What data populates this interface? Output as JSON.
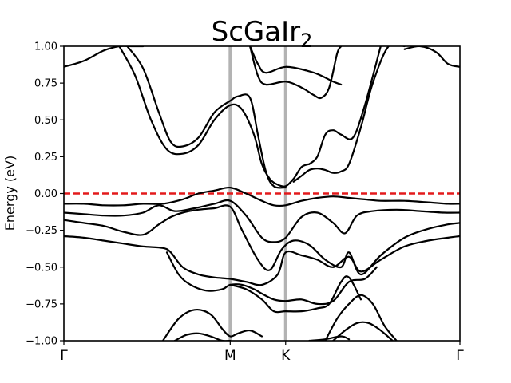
{
  "chart_data": {
    "type": "line",
    "title": "ScGaIr",
    "title_subscript": "2",
    "xlabel": "",
    "ylabel": "Energy (eV)",
    "ylim": [
      -1.0,
      1.0
    ],
    "xlim": [
      0,
      1
    ],
    "grid": false,
    "legend": "none",
    "yticks": [
      -1.0,
      -0.75,
      -0.5,
      -0.25,
      0.0,
      0.25,
      0.5,
      0.75,
      1.0
    ],
    "ytick_labels": [
      "−1.00",
      "−0.75",
      "−0.50",
      "−0.25",
      "0.00",
      "0.25",
      "0.50",
      "0.75",
      "1.00"
    ],
    "kpoints": [
      {
        "label": "Γ",
        "x": 0.0
      },
      {
        "label": "M",
        "x": 0.42
      },
      {
        "label": "K",
        "x": 0.56
      },
      {
        "label": "Γ",
        "x": 1.0
      }
    ],
    "fermi_level": 0.0,
    "colors": {
      "bands": "#000000",
      "fermi": "#e31a1c",
      "kline": "#b3b3b3"
    },
    "series": [
      {
        "x": [
          0.0,
          0.05,
          0.1,
          0.14,
          0.17,
          0.2
        ],
        "y": [
          0.86,
          0.9,
          0.97,
          1.0,
          1.0,
          1.0
        ]
      },
      {
        "x": [
          0.14,
          0.18,
          0.22,
          0.26,
          0.3,
          0.34,
          0.38,
          0.42,
          0.45,
          0.48,
          0.5,
          0.52,
          0.54,
          0.56,
          0.58,
          0.6,
          0.62
        ],
        "y": [
          1.0,
          0.8,
          0.5,
          0.3,
          0.27,
          0.33,
          0.5,
          0.6,
          0.57,
          0.4,
          0.2,
          0.1,
          0.06,
          0.05,
          0.1,
          0.18,
          0.2
        ]
      },
      {
        "x": [
          0.16,
          0.2,
          0.24,
          0.27,
          0.3,
          0.34,
          0.38,
          0.42,
          0.44,
          0.47,
          0.49,
          0.51,
          0.53,
          0.56
        ],
        "y": [
          1.0,
          0.85,
          0.55,
          0.35,
          0.32,
          0.38,
          0.55,
          0.63,
          0.66,
          0.65,
          0.4,
          0.15,
          0.05,
          0.04
        ]
      },
      {
        "x": [
          0.62,
          0.64,
          0.66,
          0.68,
          0.7,
          0.73,
          0.76,
          0.8
        ],
        "y": [
          0.2,
          0.25,
          0.4,
          0.43,
          0.4,
          0.38,
          0.6,
          1.0
        ]
      },
      {
        "x": [
          0.58,
          0.6,
          0.62,
          0.64,
          0.66,
          0.68,
          0.7,
          0.72,
          0.75,
          0.78,
          0.82,
          0.86
        ],
        "y": [
          0.08,
          0.12,
          0.16,
          0.17,
          0.16,
          0.14,
          0.15,
          0.2,
          0.45,
          0.75,
          1.0,
          1.0
        ]
      },
      {
        "x": [
          0.47,
          0.49,
          0.51,
          0.56,
          0.62,
          0.65,
          0.68,
          0.7
        ],
        "y": [
          1.0,
          0.88,
          0.82,
          0.86,
          0.83,
          0.8,
          0.76,
          0.74
        ]
      },
      {
        "x": [
          0.47,
          0.49,
          0.51,
          0.56,
          0.6,
          0.63,
          0.65,
          0.67,
          0.69,
          0.7
        ],
        "y": [
          1.0,
          0.8,
          0.74,
          0.76,
          0.72,
          0.67,
          0.65,
          0.72,
          0.95,
          1.0
        ]
      },
      {
        "x": [
          0.86,
          0.9,
          0.94,
          0.97,
          1.0
        ],
        "y": [
          0.98,
          1.0,
          0.96,
          0.88,
          0.86
        ]
      },
      {
        "x": [
          0.0,
          0.05,
          0.1,
          0.15,
          0.2,
          0.25,
          0.3,
          0.34,
          0.38,
          0.42,
          0.46,
          0.5,
          0.53,
          0.56,
          0.6,
          0.64,
          0.68,
          0.72,
          0.76,
          0.8,
          0.86,
          0.92,
          0.97,
          1.0
        ],
        "y": [
          -0.07,
          -0.07,
          -0.08,
          -0.08,
          -0.07,
          -0.07,
          -0.04,
          0.0,
          0.02,
          0.04,
          0.0,
          -0.05,
          -0.08,
          -0.08,
          -0.05,
          -0.03,
          -0.02,
          -0.03,
          -0.04,
          -0.05,
          -0.05,
          -0.06,
          -0.07,
          -0.07
        ]
      },
      {
        "x": [
          0.0,
          0.05,
          0.1,
          0.15,
          0.2,
          0.24,
          0.28,
          0.33,
          0.38,
          0.42,
          0.46,
          0.5,
          0.53,
          0.56,
          0.6,
          0.64,
          0.68,
          0.71,
          0.74,
          0.78,
          0.84,
          0.9,
          0.96,
          1.0
        ],
        "y": [
          -0.13,
          -0.14,
          -0.15,
          -0.15,
          -0.13,
          -0.08,
          -0.12,
          -0.1,
          -0.07,
          -0.05,
          -0.15,
          -0.3,
          -0.33,
          -0.3,
          -0.16,
          -0.13,
          -0.2,
          -0.27,
          -0.15,
          -0.12,
          -0.11,
          -0.12,
          -0.13,
          -0.13
        ]
      },
      {
        "x": [
          0.0,
          0.05,
          0.1,
          0.15,
          0.2,
          0.24,
          0.27,
          0.3,
          0.34,
          0.38,
          0.42,
          0.45,
          0.49,
          0.52,
          0.55,
          0.58,
          0.62,
          0.66,
          0.7,
          0.72,
          0.75,
          0.8,
          0.86,
          0.92,
          0.97,
          1.0
        ],
        "y": [
          -0.18,
          -0.2,
          -0.22,
          -0.26,
          -0.28,
          -0.21,
          -0.16,
          -0.13,
          -0.11,
          -0.1,
          -0.09,
          -0.25,
          -0.45,
          -0.52,
          -0.38,
          -0.32,
          -0.35,
          -0.45,
          -0.5,
          -0.4,
          -0.55,
          -0.42,
          -0.3,
          -0.24,
          -0.21,
          -0.2
        ]
      },
      {
        "x": [
          0.0,
          0.05,
          0.1,
          0.15,
          0.2,
          0.25,
          0.27,
          0.3,
          0.34,
          0.38,
          0.42,
          0.46,
          0.5,
          0.54,
          0.56,
          0.6,
          0.64,
          0.68,
          0.72,
          0.75,
          0.8,
          0.86,
          0.92,
          0.97,
          1.0
        ],
        "y": [
          -0.29,
          -0.3,
          -0.32,
          -0.34,
          -0.36,
          -0.37,
          -0.4,
          -0.5,
          -0.55,
          -0.57,
          -0.58,
          -0.6,
          -0.62,
          -0.55,
          -0.4,
          -0.42,
          -0.45,
          -0.5,
          -0.43,
          -0.53,
          -0.45,
          -0.36,
          -0.32,
          -0.3,
          -0.29
        ]
      },
      {
        "x": [
          0.26,
          0.29,
          0.32,
          0.36,
          0.4,
          0.42,
          0.45,
          0.48,
          0.5,
          0.53,
          0.56,
          0.6,
          0.64,
          0.68,
          0.72,
          0.76,
          0.79
        ],
        "y": [
          -0.4,
          -0.55,
          -0.62,
          -0.66,
          -0.65,
          -0.62,
          -0.62,
          -0.65,
          -0.68,
          -0.72,
          -0.73,
          -0.72,
          -0.75,
          -0.73,
          -0.6,
          -0.58,
          -0.5
        ]
      },
      {
        "x": [
          0.42,
          0.46,
          0.5,
          0.53,
          0.56,
          0.6,
          0.64,
          0.67,
          0.7,
          0.72,
          0.75
        ],
        "y": [
          -0.62,
          -0.65,
          -0.72,
          -0.8,
          -0.8,
          -0.8,
          -0.78,
          -0.75,
          -0.6,
          -0.57,
          -0.72
        ]
      },
      {
        "x": [
          0.25,
          0.29,
          0.33,
          0.37,
          0.4,
          0.42,
          0.44,
          0.47,
          0.5
        ],
        "y": [
          -1.0,
          -0.85,
          -0.79,
          -0.82,
          -0.92,
          -0.97,
          -0.95,
          -0.93,
          -0.97
        ]
      },
      {
        "x": [
          0.28,
          0.31,
          0.34,
          0.37,
          0.4,
          0.42
        ],
        "y": [
          -1.0,
          -0.96,
          -0.95,
          -0.97,
          -1.0,
          -1.0
        ]
      },
      {
        "x": [
          0.66,
          0.69,
          0.72,
          0.75,
          0.78,
          0.81,
          0.84
        ],
        "y": [
          -1.0,
          -0.85,
          -0.75,
          -0.69,
          -0.75,
          -0.9,
          -1.0
        ]
      },
      {
        "x": [
          0.68,
          0.71,
          0.74,
          0.77,
          0.8,
          0.83
        ],
        "y": [
          -1.0,
          -0.93,
          -0.88,
          -0.88,
          -0.93,
          -1.0
        ]
      },
      {
        "x": [
          0.62,
          0.66,
          0.7,
          0.72
        ],
        "y": [
          -1.0,
          -0.99,
          -0.97,
          -0.99
        ]
      }
    ]
  }
}
